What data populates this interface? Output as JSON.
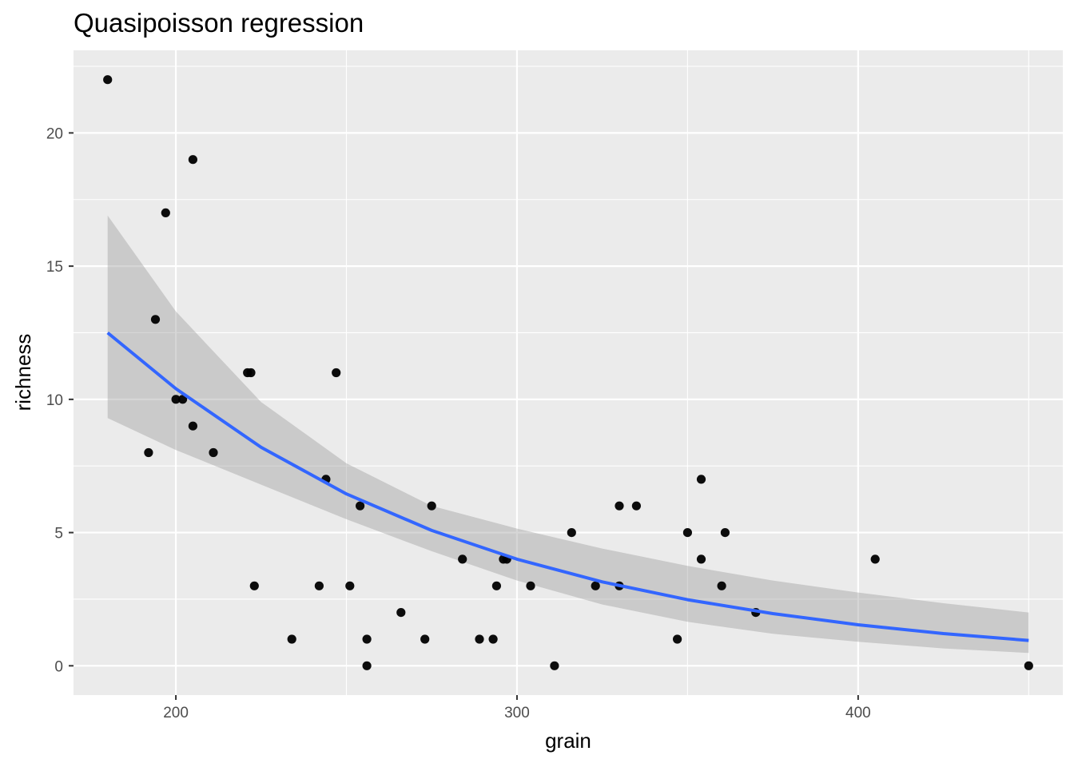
{
  "chart_data": {
    "type": "scatter",
    "title": "Quasipoisson regression",
    "xlabel": "grain",
    "ylabel": "richness",
    "xlim": [
      170,
      460
    ],
    "ylim": [
      -1.1,
      23.1
    ],
    "x_ticks": [
      200,
      300,
      400
    ],
    "y_ticks": [
      0,
      5,
      10,
      15,
      20
    ],
    "grid": true,
    "points": [
      {
        "x": 180,
        "y": 22
      },
      {
        "x": 192,
        "y": 8
      },
      {
        "x": 194,
        "y": 13
      },
      {
        "x": 197,
        "y": 17
      },
      {
        "x": 200,
        "y": 10
      },
      {
        "x": 202,
        "y": 10
      },
      {
        "x": 205,
        "y": 19
      },
      {
        "x": 205,
        "y": 9
      },
      {
        "x": 211,
        "y": 8
      },
      {
        "x": 221,
        "y": 11
      },
      {
        "x": 222,
        "y": 11
      },
      {
        "x": 223,
        "y": 3
      },
      {
        "x": 234,
        "y": 1
      },
      {
        "x": 242,
        "y": 3
      },
      {
        "x": 244,
        "y": 7
      },
      {
        "x": 247,
        "y": 11
      },
      {
        "x": 251,
        "y": 3
      },
      {
        "x": 254,
        "y": 6
      },
      {
        "x": 256,
        "y": 1
      },
      {
        "x": 256,
        "y": 0
      },
      {
        "x": 266,
        "y": 2
      },
      {
        "x": 273,
        "y": 1
      },
      {
        "x": 275,
        "y": 6
      },
      {
        "x": 284,
        "y": 4
      },
      {
        "x": 289,
        "y": 1
      },
      {
        "x": 293,
        "y": 1
      },
      {
        "x": 294,
        "y": 3
      },
      {
        "x": 296,
        "y": 4
      },
      {
        "x": 297,
        "y": 4
      },
      {
        "x": 304,
        "y": 3
      },
      {
        "x": 311,
        "y": 0
      },
      {
        "x": 316,
        "y": 5
      },
      {
        "x": 323,
        "y": 3
      },
      {
        "x": 330,
        "y": 6
      },
      {
        "x": 330,
        "y": 3
      },
      {
        "x": 335,
        "y": 6
      },
      {
        "x": 347,
        "y": 1
      },
      {
        "x": 350,
        "y": 5
      },
      {
        "x": 354,
        "y": 4
      },
      {
        "x": 354,
        "y": 7
      },
      {
        "x": 360,
        "y": 3
      },
      {
        "x": 361,
        "y": 5
      },
      {
        "x": 370,
        "y": 2
      },
      {
        "x": 405,
        "y": 4
      },
      {
        "x": 450,
        "y": 0
      }
    ],
    "fit_line": {
      "color": "#3366ff",
      "x": [
        180,
        200,
        225,
        250,
        275,
        300,
        325,
        350,
        375,
        400,
        425,
        450
      ],
      "y": [
        12.5,
        10.4,
        8.2,
        6.45,
        5.08,
        4.0,
        3.15,
        2.48,
        1.96,
        1.54,
        1.21,
        0.95
      ],
      "ci_upper": [
        16.9,
        13.3,
        9.9,
        7.6,
        6.0,
        5.15,
        4.4,
        3.75,
        3.2,
        2.75,
        2.35,
        2.0
      ],
      "ci_lower": [
        9.3,
        8.1,
        6.8,
        5.5,
        4.3,
        3.2,
        2.3,
        1.65,
        1.2,
        0.9,
        0.65,
        0.48
      ]
    },
    "colors": {
      "panel_bg": "#ebebeb",
      "grid": "#ffffff",
      "points": "#000000",
      "ribbon": "#999999"
    }
  }
}
